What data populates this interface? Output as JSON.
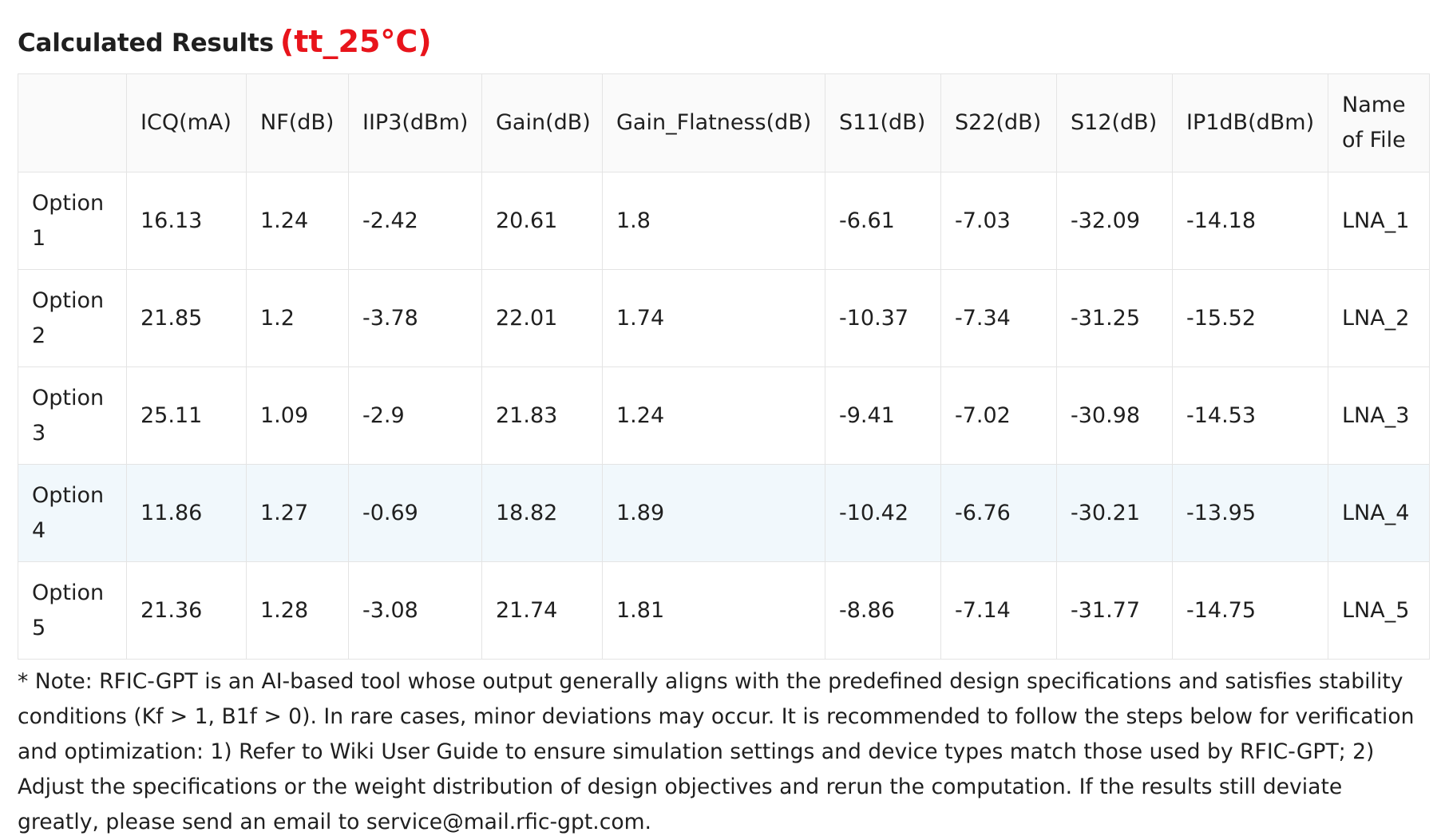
{
  "title": "Calculated Results",
  "condition": "(tt_25°C)",
  "columns": [
    "",
    "ICQ(mA)",
    "NF(dB)",
    "IIP3(dBm)",
    "Gain(dB)",
    "Gain_Flatness(dB)",
    "S11(dB)",
    "S22(dB)",
    "S12(dB)",
    "IP1dB(dBm)",
    "Name of File"
  ],
  "rows": [
    [
      "Option 1",
      "16.13",
      "1.24",
      "-2.42",
      "20.61",
      "1.8",
      "-6.61",
      "-7.03",
      "-32.09",
      "-14.18",
      "LNA_1"
    ],
    [
      "Option 2",
      "21.85",
      "1.2",
      "-3.78",
      "22.01",
      "1.74",
      "-10.37",
      "-7.34",
      "-31.25",
      "-15.52",
      "LNA_2"
    ],
    [
      "Option 3",
      "25.11",
      "1.09",
      "-2.9",
      "21.83",
      "1.24",
      "-9.41",
      "-7.02",
      "-30.98",
      "-14.53",
      "LNA_3"
    ],
    [
      "Option 4",
      "11.86",
      "1.27",
      "-0.69",
      "18.82",
      "1.89",
      "-10.42",
      "-6.76",
      "-30.21",
      "-13.95",
      "LNA_4"
    ],
    [
      "Option 5",
      "21.36",
      "1.28",
      "-3.08",
      "21.74",
      "1.81",
      "-8.86",
      "-7.14",
      "-31.77",
      "-14.75",
      "LNA_5"
    ]
  ],
  "note": "* Note: RFIC-GPT is an AI-based tool whose output generally aligns with the predefined design specifications and satisfies stability conditions (Kf > 1, B1f > 0). In rare cases, minor deviations may occur. It is recommended to follow the steps below for verification and optimization: 1) Refer to Wiki User Guide to ensure simulation settings and device types match those used by RFIC-GPT; 2) Adjust the specifications or the weight distribution of design objectives and rerun the computation. If the results still deviate greatly, please send an email to service@mail.rfic-gpt.com.",
  "colors": {
    "condition": "#e8141b",
    "highlight_row": "#f1f8fc",
    "header_bg": "#fafafa",
    "border": "#e4e4e4"
  }
}
